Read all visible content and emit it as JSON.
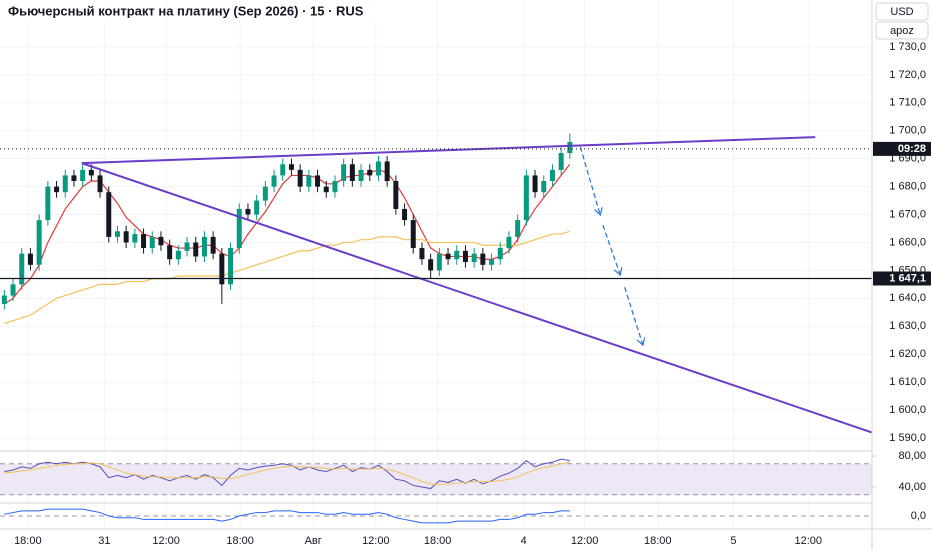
{
  "chart_data": {
    "type": "candlestick",
    "title": "Фьючерсный контракт на платину (Sep 2026) · 15 · RUS",
    "currency": "USD",
    "scale_mode": "apoz",
    "up_color": "#089981",
    "down_color": "#131722",
    "grid": true,
    "x": [
      0.5,
      1.5,
      2.5,
      3.5,
      4.5,
      5.5,
      6.5,
      7.5,
      8.5,
      9.5,
      10.5,
      11.5,
      12.5,
      13.5,
      14.5,
      15.5,
      16.5,
      17.5,
      18.5,
      19.5,
      20.5,
      21.5,
      22.5,
      23.5,
      24.5,
      25.5,
      26.5,
      27.5,
      28.5,
      29.5,
      30.5,
      31.5,
      32.5,
      33.5,
      34.5,
      35.5,
      36.5,
      37.5,
      38.5,
      39.5,
      40.5,
      41.5,
      42.5,
      43.5,
      44.5,
      45.5,
      46.5,
      47.5,
      48.5,
      49.5,
      50.5,
      51.5,
      52.5,
      53.5,
      54.5,
      55.5,
      56.5,
      57.5,
      58.5,
      59.5,
      60.5,
      61.5,
      62.5,
      63.5,
      64.5,
      65.5
    ],
    "open": [
      1638,
      1641,
      1645,
      1656,
      1652,
      1668,
      1680,
      1678,
      1684,
      1682,
      1686,
      1684,
      1678,
      1662,
      1664,
      1660,
      1663,
      1658,
      1662,
      1659,
      1654,
      1657,
      1660,
      1655,
      1662,
      1656,
      1645,
      1658,
      1672,
      1670,
      1675,
      1680,
      1684,
      1688,
      1686,
      1680,
      1684,
      1680,
      1678,
      1682,
      1688,
      1682,
      1686,
      1684,
      1689,
      1682,
      1672,
      1668,
      1658,
      1654,
      1650,
      1656,
      1654,
      1657,
      1653,
      1656,
      1652,
      1654,
      1658,
      1662,
      1668,
      1684,
      1678,
      1682,
      1686,
      1692
    ],
    "high": [
      1643,
      1647,
      1658,
      1658,
      1670,
      1682,
      1682,
      1686,
      1686,
      1688,
      1688,
      1686,
      1680,
      1666,
      1666,
      1665,
      1665,
      1664,
      1664,
      1661,
      1659,
      1662,
      1662,
      1664,
      1664,
      1658,
      1660,
      1674,
      1674,
      1677,
      1682,
      1686,
      1690,
      1690,
      1688,
      1686,
      1686,
      1682,
      1684,
      1690,
      1690,
      1688,
      1688,
      1691,
      1691,
      1684,
      1674,
      1670,
      1660,
      1656,
      1658,
      1658,
      1659,
      1659,
      1658,
      1658,
      1656,
      1660,
      1664,
      1670,
      1686,
      1686,
      1684,
      1688,
      1694,
      1699
    ],
    "low": [
      1636,
      1639,
      1643,
      1650,
      1650,
      1666,
      1676,
      1676,
      1680,
      1680,
      1682,
      1676,
      1660,
      1660,
      1658,
      1658,
      1656,
      1656,
      1657,
      1652,
      1652,
      1655,
      1653,
      1653,
      1654,
      1638,
      1643,
      1656,
      1668,
      1668,
      1673,
      1678,
      1682,
      1684,
      1678,
      1678,
      1678,
      1676,
      1676,
      1680,
      1680,
      1680,
      1682,
      1682,
      1680,
      1670,
      1666,
      1656,
      1652,
      1647,
      1648,
      1652,
      1652,
      1651,
      1651,
      1650,
      1650,
      1652,
      1656,
      1660,
      1666,
      1676,
      1676,
      1680,
      1684,
      1690
    ],
    "close": [
      1641,
      1645,
      1656,
      1652,
      1668,
      1680,
      1678,
      1684,
      1682,
      1686,
      1684,
      1678,
      1662,
      1664,
      1660,
      1663,
      1658,
      1662,
      1659,
      1654,
      1657,
      1660,
      1655,
      1662,
      1656,
      1645,
      1658,
      1672,
      1670,
      1675,
      1680,
      1684,
      1688,
      1686,
      1680,
      1684,
      1680,
      1678,
      1682,
      1688,
      1682,
      1686,
      1684,
      1689,
      1682,
      1672,
      1668,
      1658,
      1654,
      1650,
      1656,
      1654,
      1657,
      1653,
      1656,
      1652,
      1654,
      1658,
      1662,
      1668,
      1684,
      1678,
      1682,
      1686,
      1692,
      1696
    ],
    "overlays": [
      {
        "color": "#e53935",
        "values": [
          1638,
          1640,
          1644,
          1647,
          1652,
          1660,
          1666,
          1672,
          1676,
          1680,
          1682,
          1682,
          1678,
          1674,
          1669,
          1666,
          1663,
          1662,
          1661,
          1659,
          1658,
          1658,
          1658,
          1659,
          1659,
          1656,
          1655,
          1658,
          1663,
          1667,
          1671,
          1676,
          1681,
          1684,
          1684,
          1684,
          1683,
          1681,
          1681,
          1683,
          1684,
          1684,
          1685,
          1686,
          1685,
          1681,
          1676,
          1670,
          1664,
          1658,
          1656,
          1655,
          1655,
          1655,
          1655,
          1654,
          1654,
          1655,
          1657,
          1661,
          1667,
          1672,
          1676,
          1680,
          1684,
          1688
        ]
      },
      {
        "color": "#f5c15a",
        "values": [
          1631,
          1632,
          1633,
          1634,
          1636,
          1638,
          1640,
          1641,
          1642,
          1643,
          1644,
          1645,
          1645,
          1645,
          1646,
          1646,
          1646,
          1647,
          1647,
          1647,
          1648,
          1648,
          1648,
          1648,
          1648,
          1648,
          1649,
          1650,
          1651,
          1652,
          1653,
          1654,
          1655,
          1656,
          1657,
          1657,
          1658,
          1659,
          1659,
          1660,
          1660,
          1661,
          1661,
          1662,
          1662,
          1662,
          1661,
          1661,
          1661,
          1660,
          1660,
          1660,
          1660,
          1660,
          1660,
          1659,
          1659,
          1659,
          1659,
          1659,
          1660,
          1661,
          1662,
          1663,
          1663,
          1664
        ]
      }
    ],
    "xlim": [
      0,
      100
    ],
    "xticks": [
      {
        "value": 3.2,
        "label": "18:00"
      },
      {
        "value": 12,
        "label": "31"
      },
      {
        "value": 19.1,
        "label": "12:00"
      },
      {
        "value": 27.6,
        "label": "18:00"
      },
      {
        "value": 36,
        "label": "Авг"
      },
      {
        "value": 43.2,
        "label": "12:00"
      },
      {
        "value": 50.3,
        "label": "18:00"
      },
      {
        "value": 60.2,
        "label": "4"
      },
      {
        "value": 67.2,
        "label": "12:00"
      },
      {
        "value": 75.6,
        "label": "18:00"
      },
      {
        "value": 84.3,
        "label": "5"
      },
      {
        "value": 92.9,
        "label": "12:00"
      }
    ],
    "ylim": [
      1585.7,
      1746.8
    ],
    "yticks": [
      {
        "value": 1590,
        "label": "1 590,0"
      },
      {
        "value": 1600,
        "label": "1 600,0"
      },
      {
        "value": 1610,
        "label": "1 610,0"
      },
      {
        "value": 1620,
        "label": "1 620,0"
      },
      {
        "value": 1630,
        "label": "1 630,0"
      },
      {
        "value": 1640,
        "label": "1 640,0"
      },
      {
        "value": 1650,
        "label": "1 650,0"
      },
      {
        "value": 1660,
        "label": "1 660,0"
      },
      {
        "value": 1670,
        "label": "1 670,0"
      },
      {
        "value": 1680,
        "label": "1 680,0"
      },
      {
        "value": 1690,
        "label": "1 690,0"
      },
      {
        "value": 1700,
        "label": "1 700,0"
      },
      {
        "value": 1710,
        "label": "1 710,0"
      },
      {
        "value": 1720,
        "label": "1 720,0"
      },
      {
        "value": 1730,
        "label": "1 730,0"
      }
    ],
    "price_lines": [
      {
        "value": 1647.1,
        "label": "1 647,1",
        "color": "#131722",
        "style": "solid"
      },
      {
        "value": 1693.5,
        "label": "09:28",
        "color": "#131722",
        "style": "dotted"
      }
    ],
    "drawings": [
      {
        "kind": "line",
        "color": "#6a3cc8",
        "x": [
          9.4,
          93.7
        ],
        "y": [
          1688.4,
          1697.7
        ]
      },
      {
        "kind": "line",
        "color": "#6a3cc8",
        "x": [
          9.4,
          100.2
        ],
        "y": [
          1688.4,
          1592
        ]
      },
      {
        "kind": "arrow",
        "color": "#2f7ad1",
        "x": [
          66.7,
          69
        ],
        "y": [
          1694.2,
          1669.8
        ]
      },
      {
        "kind": "arrow",
        "color": "#2f7ad1",
        "x": [
          69.3,
          71.3
        ],
        "y": [
          1666.2,
          1648.3
        ]
      },
      {
        "kind": "arrow",
        "color": "#2f7ad1",
        "x": [
          71.8,
          73.9
        ],
        "y": [
          1644,
          1623.2
        ]
      }
    ],
    "panes": [
      {
        "type": "line",
        "ylim": [
          20.6,
          85.2
        ],
        "yticks": [
          {
            "value": 80,
            "label": "80,00"
          },
          {
            "value": 40,
            "label": "40,00"
          }
        ],
        "band": [
          30,
          70
        ],
        "band_color": "#ede7f6",
        "series": [
          {
            "color": "#5b4fb8",
            "values": [
              60,
              62,
              66,
              64,
              70,
              72,
              70,
              72,
              70,
              72,
              70,
              66,
              52,
              55,
              52,
              56,
              50,
              55,
              52,
              48,
              52,
              55,
              50,
              56,
              52,
              42,
              55,
              64,
              62,
              65,
              67,
              68,
              70,
              68,
              62,
              66,
              62,
              60,
              64,
              68,
              60,
              65,
              63,
              68,
              60,
              50,
              48,
              42,
              40,
              38,
              48,
              46,
              50,
              45,
              50,
              44,
              48,
              54,
              58,
              64,
              74,
              66,
              70,
              72,
              76,
              74
            ]
          },
          {
            "color": "#f5c15a",
            "values": [
              58,
              59,
              61,
              62,
              64,
              66,
              68,
              69,
              70,
              70,
              71,
              70,
              66,
              62,
              58,
              56,
              54,
              53,
              53,
              52,
              52,
              52,
              52,
              53,
              53,
              51,
              51,
              53,
              56,
              59,
              62,
              64,
              66,
              67,
              66,
              66,
              65,
              64,
              63,
              64,
              63,
              63,
              63,
              64,
              63,
              60,
              56,
              52,
              47,
              44,
              43,
              44,
              45,
              46,
              47,
              47,
              47,
              48,
              50,
              53,
              58,
              62,
              65,
              67,
              70,
              72
            ]
          }
        ]
      },
      {
        "type": "line",
        "ylim": [
          -7,
          7
        ],
        "yticks": [
          {
            "value": 0,
            "label": "0,0"
          }
        ],
        "series": [
          {
            "color": "#2962ff",
            "values": [
              1,
              2,
              3,
              3,
              3,
              4,
              4,
              4,
              4,
              4,
              3,
              2,
              0,
              -1,
              -1,
              -1,
              -2,
              -2,
              -2,
              -2,
              -2,
              -2,
              -2,
              -2,
              -2,
              -3,
              -2,
              0,
              1,
              2,
              2,
              3,
              3,
              3,
              2,
              2,
              2,
              1,
              1,
              2,
              1,
              1,
              1,
              2,
              1,
              -1,
              -2,
              -3,
              -4,
              -4,
              -4,
              -4,
              -3,
              -3,
              -3,
              -3,
              -3,
              -2,
              -2,
              -1,
              1,
              1,
              2,
              2,
              3,
              3
            ]
          }
        ]
      }
    ]
  }
}
